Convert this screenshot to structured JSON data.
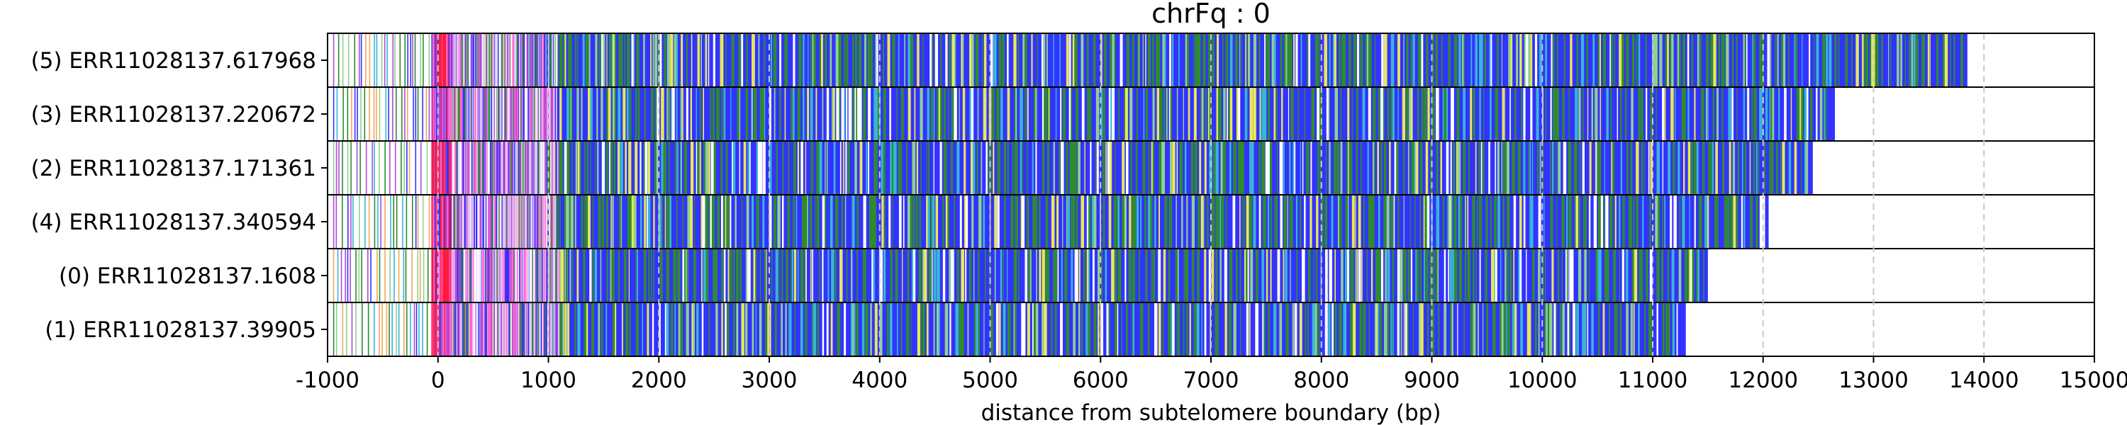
{
  "chart_data": {
    "type": "heatmap",
    "title": "chrFq : 0",
    "xlabel": "distance from subtelomere boundary (bp)",
    "ylabel": "",
    "xlim": [
      -1000,
      15000
    ],
    "xticks": [
      -1000,
      0,
      1000,
      2000,
      3000,
      4000,
      5000,
      6000,
      7000,
      8000,
      9000,
      10000,
      11000,
      12000,
      13000,
      14000,
      15000
    ],
    "vertical_grid": "dashed at major ticks",
    "colors": {
      "dominant": "#3333ff",
      "green": "#2e8b2e",
      "light_green": "#8fd18f",
      "white": "#ffffff",
      "cyan": "#39b5d6",
      "red": "#ff1a3c",
      "pink": "#ff66cc",
      "violet": "#b04ad8",
      "lavender": "#dcc8f5",
      "yellow": "#e8e85a",
      "orange": "#f2a65a"
    },
    "reads": [
      {
        "label": "(5) ERR11028137.617968",
        "start": -1000,
        "end": 13850,
        "white_zone": [
          -300,
          -50
        ]
      },
      {
        "label": "(3) ERR11028137.220672",
        "start": -1000,
        "end": 12650,
        "white_zone": [
          3600,
          4000
        ]
      },
      {
        "label": "(2) ERR11028137.171361",
        "start": -1000,
        "end": 12450,
        "white_zone": [
          7200,
          7800
        ]
      },
      {
        "label": "(4) ERR11028137.340594",
        "start": -1000,
        "end": 12050,
        "white_zone": [
          -600,
          -150
        ]
      },
      {
        "label": "(0) ERR11028137.1608",
        "start": -1000,
        "end": 11500,
        "white_zone": [
          -650,
          -150
        ]
      },
      {
        "label": "(1) ERR11028137.39905",
        "start": -1000,
        "end": 11300,
        "white_zone": [
          -500,
          -200
        ]
      }
    ]
  }
}
